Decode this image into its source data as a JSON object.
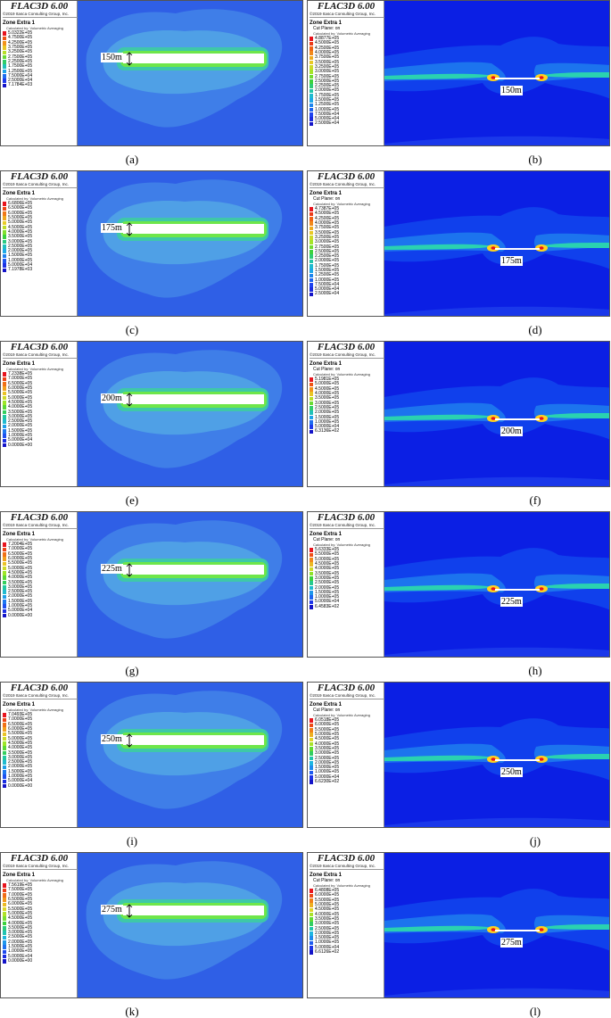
{
  "app_title": "FLAC3D 6.00",
  "copyright": "©2019 Itasca Consulting Group, Inc.",
  "zone_title": "Zone Extra 1",
  "cut_plane": "Cut Plane: on",
  "calc_note": "Calculated by: Volumetric Averaging",
  "colors": {
    "left_background": "#3466e0",
    "right_background": "#0a1ee6",
    "legend_ramp": [
      "#e8141e",
      "#f05a14",
      "#f2a01e",
      "#e6d428",
      "#9ee628",
      "#3cd23c",
      "#23c8a0",
      "#1eb4e6",
      "#1e78f0",
      "#1e3cf0",
      "#1414c8"
    ]
  },
  "panels": [
    {
      "id": "a",
      "caption": "(a)",
      "view": "left",
      "width_label": "150m",
      "legend": [
        "5.0322E+05",
        "4.7500E+05",
        "4.2500E+05",
        "3.7500E+05",
        "3.2500E+05",
        "2.7500E+05",
        "2.2500E+05",
        "1.7500E+05",
        "1.2500E+05",
        "7.5000E+04",
        "2.5000E+04",
        "7.1784E+03"
      ]
    },
    {
      "id": "b",
      "caption": "(b)",
      "view": "right",
      "width_label": "150m",
      "legend": [
        "4.8877E+05",
        "4.5000E+05",
        "4.2500E+05",
        "4.0000E+05",
        "3.7500E+05",
        "3.5000E+05",
        "3.2500E+05",
        "3.0000E+05",
        "2.7500E+05",
        "2.5000E+05",
        "2.2500E+05",
        "2.0000E+05",
        "1.7500E+05",
        "1.5000E+05",
        "1.2500E+05",
        "1.0000E+05",
        "7.5000E+04",
        "5.0000E+04",
        "2.5000E+04"
      ]
    },
    {
      "id": "c",
      "caption": "(c)",
      "view": "left",
      "width_label": "175m",
      "legend": [
        "6.6806E+05",
        "6.5000E+05",
        "6.0000E+05",
        "5.5000E+05",
        "5.0000E+05",
        "4.5000E+05",
        "4.0000E+05",
        "3.5000E+05",
        "3.0000E+05",
        "2.5000E+05",
        "2.0000E+05",
        "1.5000E+05",
        "1.0000E+05",
        "5.0000E+04",
        "7.1978E+03"
      ]
    },
    {
      "id": "d",
      "caption": "(d)",
      "view": "right",
      "width_label": "175m",
      "legend": [
        "4.7387E+05",
        "4.5000E+05",
        "4.2500E+05",
        "4.0000E+05",
        "3.7500E+05",
        "3.5000E+05",
        "3.2500E+05",
        "3.0000E+05",
        "2.7500E+05",
        "2.5000E+05",
        "2.2500E+05",
        "2.0000E+05",
        "1.7500E+05",
        "1.5000E+05",
        "1.2500E+05",
        "1.0000E+05",
        "7.5000E+04",
        "5.0000E+04",
        "2.5000E+04"
      ]
    },
    {
      "id": "e",
      "caption": "(e)",
      "view": "left",
      "width_label": "200m",
      "legend": [
        "7.2338E+05",
        "7.0000E+05",
        "6.5000E+05",
        "6.0000E+05",
        "5.5000E+05",
        "5.0000E+05",
        "4.5000E+05",
        "4.0000E+05",
        "3.5000E+05",
        "3.0000E+05",
        "2.5000E+05",
        "2.0000E+05",
        "1.5000E+05",
        "1.0000E+05",
        "5.0000E+04",
        "0.0000E+00"
      ]
    },
    {
      "id": "f",
      "caption": "(f)",
      "view": "right",
      "width_label": "200m",
      "legend": [
        "5.1981E+05",
        "5.0000E+05",
        "4.5000E+05",
        "4.0000E+05",
        "3.5000E+05",
        "3.0000E+05",
        "2.5000E+05",
        "2.0000E+05",
        "1.5000E+05",
        "1.0000E+05",
        "5.0000E+04",
        "6.3136E+02"
      ]
    },
    {
      "id": "g",
      "caption": "(g)",
      "view": "left",
      "width_label": "225m",
      "legend": [
        "7.2004E+05",
        "7.0000E+05",
        "6.5000E+05",
        "6.0000E+05",
        "5.5000E+05",
        "5.0000E+05",
        "4.5000E+05",
        "4.0000E+05",
        "3.5000E+05",
        "3.0000E+05",
        "2.5000E+05",
        "2.0000E+05",
        "1.5000E+05",
        "1.0000E+05",
        "5.0000E+04",
        "0.0000E+00"
      ]
    },
    {
      "id": "h",
      "caption": "(h)",
      "view": "right",
      "width_label": "225m",
      "legend": [
        "5.6333E+05",
        "5.5000E+05",
        "5.0000E+05",
        "4.5000E+05",
        "4.0000E+05",
        "3.5000E+05",
        "3.0000E+05",
        "2.5000E+05",
        "2.0000E+05",
        "1.5000E+05",
        "1.0000E+05",
        "5.0000E+04",
        "6.4583E+02"
      ]
    },
    {
      "id": "i",
      "caption": "(i)",
      "view": "left",
      "width_label": "250m",
      "legend": [
        "7.0493E+05",
        "7.0000E+05",
        "6.5000E+05",
        "6.0000E+05",
        "5.5000E+05",
        "5.0000E+05",
        "4.5000E+05",
        "4.0000E+05",
        "3.5000E+05",
        "3.0000E+05",
        "2.5000E+05",
        "2.0000E+05",
        "1.5000E+05",
        "1.0000E+05",
        "5.0000E+04",
        "0.0000E+00"
      ]
    },
    {
      "id": "j",
      "caption": "(j)",
      "view": "right",
      "width_label": "250m",
      "legend": [
        "6.0518E+05",
        "6.0000E+05",
        "5.5000E+05",
        "5.0000E+05",
        "4.5000E+05",
        "4.0000E+05",
        "3.5000E+05",
        "3.0000E+05",
        "2.5000E+05",
        "2.0000E+05",
        "1.5000E+05",
        "1.0000E+05",
        "5.0000E+04",
        "6.6230E+02"
      ]
    },
    {
      "id": "k",
      "caption": "(k)",
      "view": "left",
      "width_label": "275m",
      "legend": [
        "7.5619E+05",
        "7.5000E+05",
        "7.0000E+05",
        "6.5000E+05",
        "6.0000E+05",
        "5.5000E+05",
        "5.0000E+05",
        "4.5000E+05",
        "4.0000E+05",
        "3.5000E+05",
        "3.0000E+05",
        "2.5000E+05",
        "2.0000E+05",
        "1.5000E+05",
        "1.0000E+05",
        "5.0000E+04",
        "0.0000E+00"
      ]
    },
    {
      "id": "l",
      "caption": "(l)",
      "view": "right",
      "width_label": "275m",
      "legend": [
        "6.4808E+05",
        "6.0000E+05",
        "5.5000E+05",
        "5.0000E+05",
        "4.5000E+05",
        "4.0000E+05",
        "3.5000E+05",
        "3.0000E+05",
        "2.5000E+05",
        "2.0000E+05",
        "1.5000E+05",
        "1.0000E+05",
        "5.0000E+04",
        "6.6126E+02"
      ]
    }
  ]
}
